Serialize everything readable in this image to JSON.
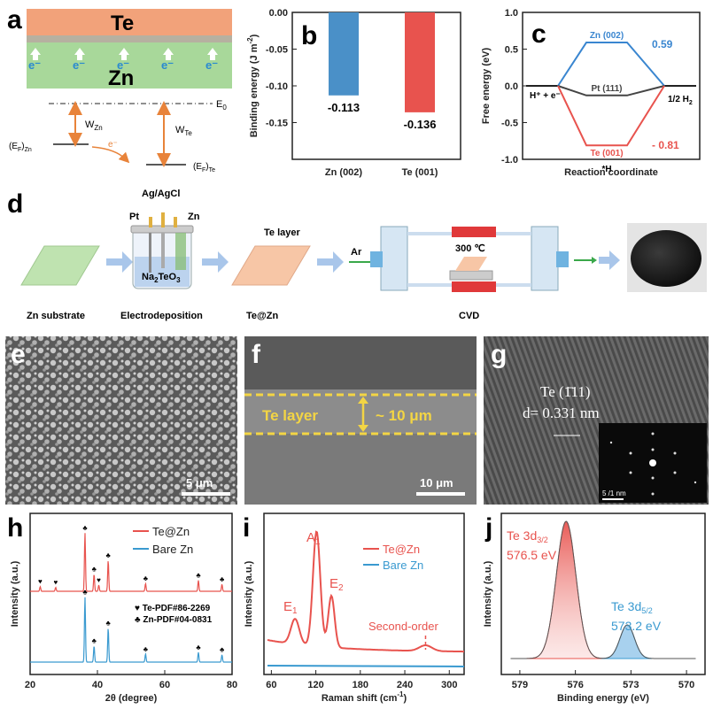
{
  "panels": {
    "a": {
      "label": "a",
      "top": "Te",
      "bottom": "Zn",
      "electron": "e⁻",
      "e0": "E",
      "e0_sub": "0",
      "wzn": "W",
      "wzn_sub": "Zn",
      "wte": "W",
      "wte_sub": "Te",
      "efzn": "(E",
      "efzn_b": "F",
      "efzn_c": ")",
      "efzn_sub": "Zn",
      "efte": "(E",
      "efte_b": "F",
      "efte_c": ")",
      "efte_sub": "Te",
      "e_transfer": "e⁻"
    },
    "b": {
      "label": "b"
    },
    "c": {
      "label": "c"
    },
    "d": {
      "label": "d",
      "ref": "Ag/AgCl",
      "pt": "Pt",
      "zn": "Zn",
      "sol": "Na",
      "sol_sub1": "2",
      "sol_mid": "TeO",
      "sol_sub2": "3",
      "telayer": "Te layer",
      "ar": "Ar",
      "temp": "300 ℃",
      "cap1": "Zn substrate",
      "cap2": "Electrodeposition",
      "cap3": "Te@Zn",
      "cap4": "CVD"
    },
    "e": {
      "label": "e",
      "scale": "5 μm"
    },
    "f": {
      "label": "f",
      "layer": "Te layer",
      "thick": "~ 10 μm",
      "scale": "10 μm"
    },
    "g": {
      "label": "g",
      "plane": "Te (1̄11)",
      "d": "d= 0.331 nm",
      "scale": "5 /1 nm"
    },
    "h": {
      "label": "h",
      "leg1": "Te@Zn",
      "leg2": "Bare Zn",
      "ref1": "♥ Te-PDF#86-2269",
      "ref2": "♣ Zn-PDF#04-0831"
    },
    "i": {
      "label": "i",
      "leg1": "Te@Zn",
      "leg2": "Bare Zn",
      "a1": "A",
      "a1s": "1",
      "e1": "E",
      "e1s": "1",
      "e2": "E",
      "e2s": "2",
      "so": "Second-order"
    },
    "j": {
      "label": "j",
      "p1": "Te 3d",
      "p1s": "3/2",
      "p1v": "576.5 eV",
      "p2": "Te 3d",
      "p2s": "5/2",
      "p2v": "573.2 eV"
    }
  },
  "chart_data": [
    {
      "type": "bar",
      "id": "b",
      "categories": [
        "Zn (002)",
        "Te (001)"
      ],
      "values": [
        -0.113,
        -0.136
      ],
      "value_labels": [
        "-0.113",
        "-0.136"
      ],
      "ylabel": "Binding energy (J m",
      "ylabel_sup": "-2",
      "ylabel_end": ")",
      "ylim": [
        -0.2,
        0.0
      ],
      "yticks": [
        "0.00",
        "-0.05",
        "-0.10",
        "-0.15"
      ],
      "colors": [
        "#4a90c8",
        "#e8534e"
      ]
    },
    {
      "type": "line",
      "id": "c",
      "x": [
        0,
        1,
        2,
        3
      ],
      "series": [
        {
          "name": "Zn (002)",
          "values": [
            0,
            0.59,
            0.59,
            0
          ],
          "color": "#3a86d0",
          "label": "0.59"
        },
        {
          "name": "Pt (111)",
          "values": [
            0,
            -0.13,
            -0.13,
            0
          ],
          "color": "#444444"
        },
        {
          "name": "Te (001)",
          "values": [
            0,
            -0.81,
            -0.81,
            0
          ],
          "color": "#e8534e",
          "label": "- 0.81"
        }
      ],
      "ylabel": "Free energy (eV)",
      "xlabel": "Reaction coordinate",
      "ylim": [
        -1.0,
        1.0
      ],
      "yticks": [
        "1.0",
        "0.5",
        "0.0",
        "-0.5",
        "-1.0"
      ],
      "left_label": "H⁺ + e⁻",
      "right_label": "1/2 H",
      "right_sub": "2",
      "mid_label": "*H"
    },
    {
      "type": "line",
      "id": "h",
      "xlabel": "2θ (degree)",
      "ylabel": "Intensity (a.u.)",
      "xlim": [
        20,
        80
      ],
      "xticks": [
        "20",
        "40",
        "60",
        "80"
      ],
      "series": [
        {
          "name": "Te@Zn",
          "color": "#e8534e",
          "peaks": [
            {
              "x": 23,
              "h": 0.06
            },
            {
              "x": 27.6,
              "h": 0.05
            },
            {
              "x": 36.3,
              "h": 0.75
            },
            {
              "x": 39,
              "h": 0.22
            },
            {
              "x": 40.4,
              "h": 0.08
            },
            {
              "x": 43.2,
              "h": 0.4
            },
            {
              "x": 54.3,
              "h": 0.1
            },
            {
              "x": 70,
              "h": 0.14
            },
            {
              "x": 77,
              "h": 0.09
            }
          ]
        },
        {
          "name": "Bare Zn",
          "color": "#3a9ad0",
          "peaks": [
            {
              "x": 36.3,
              "h": 0.8
            },
            {
              "x": 39,
              "h": 0.2
            },
            {
              "x": 43.2,
              "h": 0.42
            },
            {
              "x": 54.3,
              "h": 0.1
            },
            {
              "x": 70,
              "h": 0.12
            },
            {
              "x": 77,
              "h": 0.09
            }
          ]
        }
      ]
    },
    {
      "type": "line",
      "id": "i",
      "xlabel": "Raman shift (cm",
      "xlabel_sup": "-1",
      "xlabel_end": ")",
      "ylabel": "Intensity (a.u.)",
      "xlim": [
        50,
        320
      ],
      "xticks": [
        "60",
        "120",
        "180",
        "240",
        "300"
      ],
      "series": [
        {
          "name": "Te@Zn",
          "color": "#e8534e"
        },
        {
          "name": "Bare Zn",
          "color": "#3a9ad0"
        }
      ]
    },
    {
      "type": "line",
      "id": "j",
      "xlabel": "Binding energy (eV)",
      "ylabel": "Intensity (a.u.)",
      "xlim": [
        580,
        569
      ],
      "xticks": [
        "579",
        "576",
        "573",
        "570"
      ],
      "series": [
        {
          "name": "Te 3d3/2",
          "center": 576.5,
          "color": "#e8534e"
        },
        {
          "name": "Te 3d5/2",
          "center": 573.2,
          "color": "#3a9ad0"
        }
      ]
    }
  ]
}
